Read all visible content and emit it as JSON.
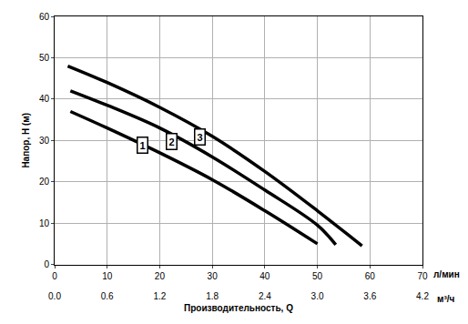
{
  "chart_data": {
    "type": "line",
    "ylabel": "Напор, H (м)",
    "xlabel": "Производительность, Q",
    "x_unit": "л/мин",
    "x2_unit": "м³/ч",
    "xlim": [
      0,
      70
    ],
    "xticks": [
      0,
      10,
      20,
      30,
      40,
      50,
      60,
      70
    ],
    "x2lim": [
      0,
      4.2
    ],
    "x2ticks": [
      {
        "value": 0,
        "label": "0.0"
      },
      0.6,
      1.2,
      1.8,
      2.4,
      {
        "value": 3,
        "label": "3.0"
      },
      3.6,
      4.2
    ],
    "ylim": [
      0,
      60
    ],
    "yticks": [
      0,
      10,
      20,
      30,
      40,
      50,
      60
    ],
    "grid": true,
    "series": [
      {
        "name": "1",
        "color": "#000000",
        "x": [
          3,
          10,
          20,
          30,
          40,
          50
        ],
        "values": [
          37,
          33,
          27,
          20.5,
          13,
          5
        ]
      },
      {
        "name": "2",
        "color": "#000000",
        "x": [
          3,
          10,
          20,
          30,
          40,
          50,
          53.5
        ],
        "values": [
          42,
          38.5,
          33,
          26,
          18,
          9.5,
          4.8
        ]
      },
      {
        "name": "3",
        "color": "#000000",
        "x": [
          2.5,
          10,
          20,
          30,
          40,
          50,
          58.5
        ],
        "values": [
          48,
          44,
          38,
          31,
          22.5,
          13,
          4.5
        ]
      }
    ],
    "annotations": [
      {
        "text": "1",
        "x": 16.7,
        "y": 28.9
      },
      {
        "text": "2",
        "x": 22.3,
        "y": 29.8
      },
      {
        "text": "3",
        "x": 27.6,
        "y": 30.9
      }
    ]
  }
}
